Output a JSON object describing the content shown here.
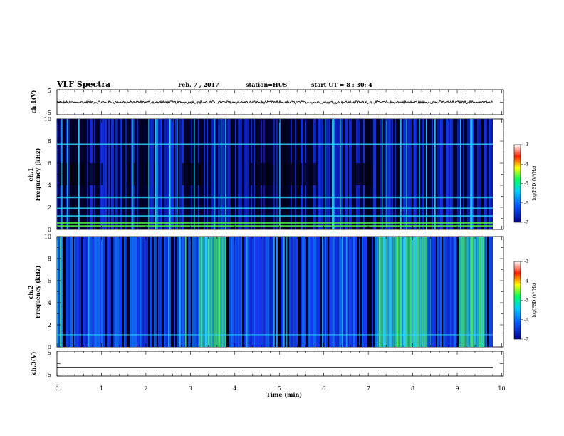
{
  "header": {
    "title": "VLF Spectra",
    "date": "Feb. 7 , 2017",
    "station": "station=HUS",
    "start": "start UT =  8 : 30: 4"
  },
  "colors": {
    "background": "#00006a",
    "cyan": "#2fd6ff",
    "green": "#56ff44",
    "blue": "#1840ff",
    "trace": "#000000"
  },
  "chart_data": [
    {
      "type": "line",
      "panel": "ch.1 waveform",
      "ylabel": "ch.1(V)",
      "ylim": [
        -5,
        5
      ],
      "yticks": [
        "5",
        "-5"
      ],
      "xlim": [
        0,
        10
      ],
      "series": [
        {
          "description": "noise trace near 0 V",
          "values": [
            0
          ]
        }
      ]
    },
    {
      "type": "heatmap",
      "panel": "ch.1 spectrogram",
      "ylabel": "ch.1\nFrequency (kHz)",
      "ylim": [
        0,
        10
      ],
      "yticks": [
        "0",
        "2",
        "4",
        "6",
        "8",
        "10"
      ],
      "xlim": [
        0,
        10
      ],
      "colorbar": {
        "label": "log(PSD)(V²/Hz)",
        "range": [
          -7,
          -3
        ],
        "ticks": [
          "-3",
          "-4",
          "-5",
          "-6",
          "-7"
        ]
      },
      "horizontal_lines_khz": [
        7.7,
        2.9,
        1.9,
        1.2,
        0.6,
        0.3
      ],
      "burst_time_ranges_min": [
        [
          1.0,
          1.6
        ],
        [
          2.2,
          2.8
        ],
        [
          3.5,
          4.3
        ],
        [
          5.8,
          6.6
        ],
        [
          7.3,
          9.8
        ]
      ]
    },
    {
      "type": "heatmap",
      "panel": "ch.2 spectrogram",
      "ylabel": "ch.2\nFrequency (kHz)",
      "ylim": [
        0,
        10
      ],
      "yticks": [
        "0",
        "2",
        "4",
        "6",
        "8",
        "10"
      ],
      "xlim": [
        0,
        10
      ],
      "colorbar": {
        "label": "log(PSD)(V²/Hz)",
        "range": [
          -7,
          -3
        ],
        "ticks": [
          "-3",
          "-4",
          "-5",
          "-6",
          "-7"
        ]
      },
      "green_patch_time_ranges_min": [
        [
          3.2,
          3.8
        ],
        [
          7.2,
          8.3
        ],
        [
          9.0,
          9.6
        ]
      ]
    },
    {
      "type": "line",
      "panel": "ch.3 waveform",
      "ylabel": "ch.3(V)",
      "ylim": [
        -5,
        5
      ],
      "yticks": [
        "5",
        "-5"
      ],
      "xlim": [
        0,
        10
      ],
      "series": [
        {
          "description": "flat line",
          "values": [
            -1.5
          ]
        }
      ]
    }
  ],
  "xaxis": {
    "label": "Time (min)",
    "ticks": [
      "0",
      "1",
      "2",
      "3",
      "4",
      "5",
      "6",
      "7",
      "8",
      "9",
      "10"
    ]
  }
}
